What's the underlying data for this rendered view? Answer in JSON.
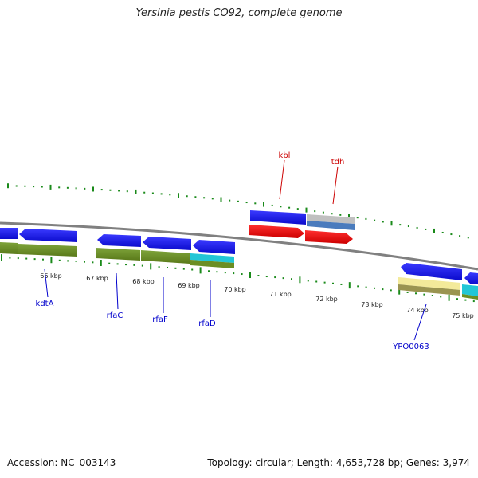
{
  "title": "Yersinia pestis CO92, complete genome",
  "footer": {
    "accession": "Accession: NC_003143",
    "summary": "Topology: circular; Length: 4,653,728 bp; Genes: 3,974"
  },
  "ticks": [
    {
      "label": "66 kbp"
    },
    {
      "label": "67 kbp"
    },
    {
      "label": "68 kbp"
    },
    {
      "label": "69 kbp"
    },
    {
      "label": "70 kbp"
    },
    {
      "label": "71 kbp"
    },
    {
      "label": "72 kbp"
    },
    {
      "label": "73 kbp"
    },
    {
      "label": "74 kbp"
    },
    {
      "label": "75 kbp"
    }
  ],
  "gene_labels_below": [
    {
      "name": "kdtA",
      "color": "#0000cc"
    },
    {
      "name": "rfaC",
      "color": "#0000cc"
    },
    {
      "name": "rfaF",
      "color": "#0000cc"
    },
    {
      "name": "rfaD",
      "color": "#0000cc"
    },
    {
      "name": "YPO0063",
      "color": "#0000cc"
    }
  ],
  "gene_labels_above": [
    {
      "name": "kbl",
      "color": "#cc0000"
    },
    {
      "name": "tdh",
      "color": "#cc0000"
    }
  ],
  "colors": {
    "backbone": "#808080",
    "cds_blue": "#1515ee",
    "olive": "#6b8e23",
    "cyan": "#22c6d6",
    "red": "#ee1111",
    "grey": "#b8b8b8",
    "steel": "#4a7bbd",
    "yellow": "#f3ea9a",
    "tick_green": "#1a8a1a"
  }
}
